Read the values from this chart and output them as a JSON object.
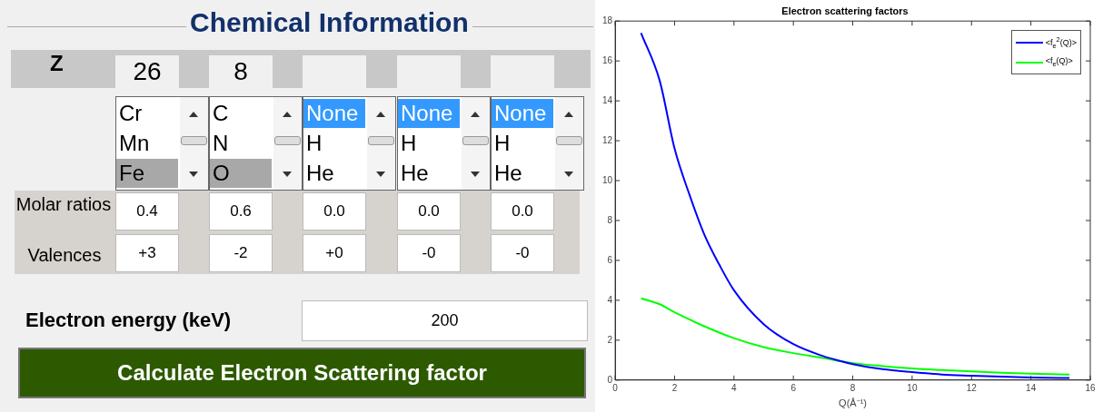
{
  "chart_data": [
    {
      "type": "other",
      "title": "Chemical Information",
      "annotations": [
        "Z",
        "26",
        "8",
        "Cr",
        "Mn",
        "Fe",
        "C",
        "N",
        "O",
        "None",
        "H",
        "He",
        "None",
        "H",
        "He",
        "None",
        "H",
        "He",
        "Molar ratios",
        "0.4",
        "0.6",
        "0.0",
        "0.0",
        "0.0",
        "Valences",
        "+3",
        "-2",
        "+0",
        "-0",
        "-0",
        "Electron energy (keV)",
        "200",
        "Calculate Electron Scattering factor"
      ]
    },
    {
      "type": "line",
      "title": "Electron scattering factors",
      "xlabel": "Q(Å⁻¹)",
      "xlim": [
        0,
        16
      ],
      "xticks": [
        0,
        2,
        4,
        6,
        8,
        10,
        12,
        14,
        16
      ],
      "ylim": [
        0,
        18
      ],
      "yticks": [
        0,
        2,
        4,
        6,
        8,
        10,
        12,
        14,
        16,
        18
      ],
      "grid": false,
      "legend": "top right",
      "marker": "none",
      "line_style": "solid",
      "series": [
        {
          "name": "<f$_{e}$$^{2}$(Q)>",
          "color": "#0000ff",
          "x": [
            0.87,
            1.5,
            2,
            2.5,
            3,
            3.5,
            4,
            5,
            6,
            7,
            7.6,
            8,
            9,
            10,
            11,
            12,
            13,
            14,
            15.3
          ],
          "values": [
            17.4,
            15.0,
            11.6,
            9.3,
            7.3,
            5.8,
            4.5,
            2.8,
            1.8,
            1.2,
            0.95,
            0.8,
            0.55,
            0.4,
            0.28,
            0.22,
            0.17,
            0.13,
            0.1
          ]
        },
        {
          "name": "<f$_{e}$(Q)>",
          "color": "#00ff00",
          "x": [
            0.87,
            1.5,
            2,
            3,
            4,
            5,
            6,
            7,
            8,
            9,
            10,
            11,
            12,
            13,
            14,
            15.3
          ],
          "values": [
            4.1,
            3.8,
            3.4,
            2.7,
            2.1,
            1.65,
            1.35,
            1.1,
            0.85,
            0.7,
            0.58,
            0.5,
            0.43,
            0.37,
            0.32,
            0.27
          ]
        }
      ]
    }
  ]
}
